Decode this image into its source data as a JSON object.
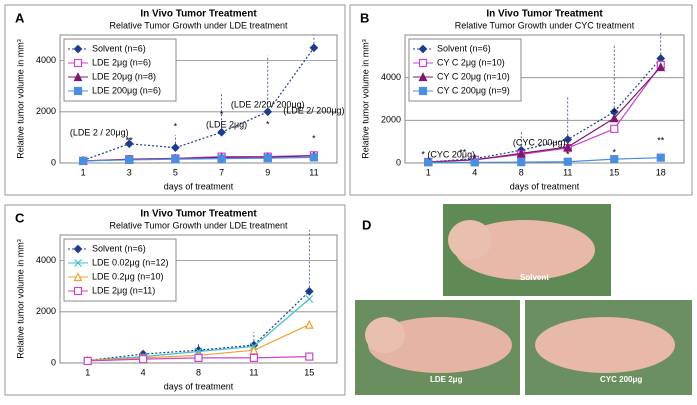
{
  "chart_data": [
    {
      "type": "line",
      "panel": "A",
      "title": "In Vivo Tumor Treatment",
      "subtitle": "Relative Tumor Growth under LDE treatment",
      "y_label": "Relative tumor volume in mm³",
      "x_label": "days of treatment",
      "categories": [
        "1",
        "3",
        "5",
        "7",
        "9",
        "11"
      ],
      "ylim": [
        0,
        5000
      ],
      "yticks": [
        0,
        2000,
        4000
      ],
      "grid": true,
      "legend": "upper left",
      "series": [
        {
          "name": "Solvent (n=6)",
          "color": "#1f3b8c",
          "marker": "diamond",
          "dash": "dotted",
          "values": [
            100,
            750,
            600,
            1200,
            2000,
            4500
          ],
          "errors": [
            50,
            300,
            500,
            1500,
            2200,
            500
          ]
        },
        {
          "name": "LDE 2μg (n=6)",
          "color": "#cc44cc",
          "marker": "square-open",
          "values": [
            80,
            150,
            180,
            250,
            250,
            300
          ]
        },
        {
          "name": "LDE 20μg (n=8)",
          "color": "#7b1a6b",
          "marker": "triangle",
          "values": [
            80,
            140,
            170,
            220,
            230,
            280
          ]
        },
        {
          "name": "LDE 200μg (n=6)",
          "color": "#4a8ee0",
          "marker": "square",
          "values": [
            80,
            120,
            150,
            170,
            190,
            220
          ]
        }
      ],
      "annotations": [
        "(LDE 2 / 20μg)",
        "**",
        "*",
        "*",
        "(LDE 2μg)",
        "*",
        "(LDE 2/20/ 200μg)",
        "*",
        "(LDE 2/ 200μg)"
      ]
    },
    {
      "type": "line",
      "panel": "B",
      "title": "In Vivo Tumor Treatment",
      "subtitle": "Relative Tumor Growth under CYC treatment",
      "y_label": "Relative tumor volume in mm³",
      "x_label": "days of treatment",
      "categories": [
        "1",
        "4",
        "8",
        "11",
        "15",
        "18"
      ],
      "ylim": [
        0,
        6000
      ],
      "yticks": [
        0,
        2000,
        4000
      ],
      "grid": true,
      "legend": "upper left",
      "series": [
        {
          "name": "Solvent (n=6)",
          "color": "#1f3b8c",
          "marker": "diamond",
          "dash": "dotted",
          "values": [
            50,
            200,
            600,
            1100,
            2400,
            4900
          ],
          "errors": [
            100,
            200,
            900,
            2000,
            3200,
            1200
          ]
        },
        {
          "name": "CY C 2μg (n=10)",
          "color": "#cc44cc",
          "marker": "square-open",
          "values": [
            50,
            150,
            400,
            700,
            1600,
            4600
          ]
        },
        {
          "name": "CY C 20μg (n=10)",
          "color": "#7b1a6b",
          "marker": "triangle",
          "values": [
            50,
            150,
            450,
            750,
            2100,
            4500
          ]
        },
        {
          "name": "CY C 200μg (n=9)",
          "color": "#4a8ee0",
          "marker": "square",
          "values": [
            30,
            30,
            40,
            60,
            180,
            250
          ]
        }
      ],
      "annotations": [
        "* (CYC 20μg)",
        "**",
        "(CYC 200μg)",
        "*",
        "*",
        "*",
        "**"
      ]
    },
    {
      "type": "line",
      "panel": "C",
      "title": "In Vivo Tumor Treatment",
      "subtitle": "Relative Tumor Growth under LDE treatment",
      "y_label": "Relative tumor volume in mm³",
      "x_label": "days of treatment",
      "categories": [
        "1",
        "4",
        "8",
        "11",
        "15"
      ],
      "ylim": [
        0,
        5000
      ],
      "yticks": [
        0,
        2000,
        4000
      ],
      "grid": true,
      "legend": "upper left",
      "series": [
        {
          "name": "Solvent (n=6)",
          "color": "#1f3b8c",
          "marker": "diamond",
          "dash": "dotted",
          "values": [
            100,
            350,
            500,
            700,
            2800
          ],
          "errors": [
            50,
            100,
            250,
            500,
            2400
          ]
        },
        {
          "name": "LDE 0.02μg (n=12)",
          "color": "#40c0d0",
          "marker": "x",
          "values": [
            100,
            250,
            450,
            650,
            2500
          ]
        },
        {
          "name": "LDE 0.2μg (n=10)",
          "color": "#f0a030",
          "marker": "triangle-open",
          "values": [
            100,
            200,
            300,
            500,
            1500
          ]
        },
        {
          "name": "LDE 2μg (n=11)",
          "color": "#cc44cc",
          "marker": "square-open",
          "values": [
            80,
            150,
            200,
            200,
            250
          ]
        }
      ],
      "annotations": []
    }
  ],
  "photos": {
    "panel": "D",
    "captions": [
      "Solvent",
      "LDE 2μg",
      "CYC 200μg"
    ]
  }
}
